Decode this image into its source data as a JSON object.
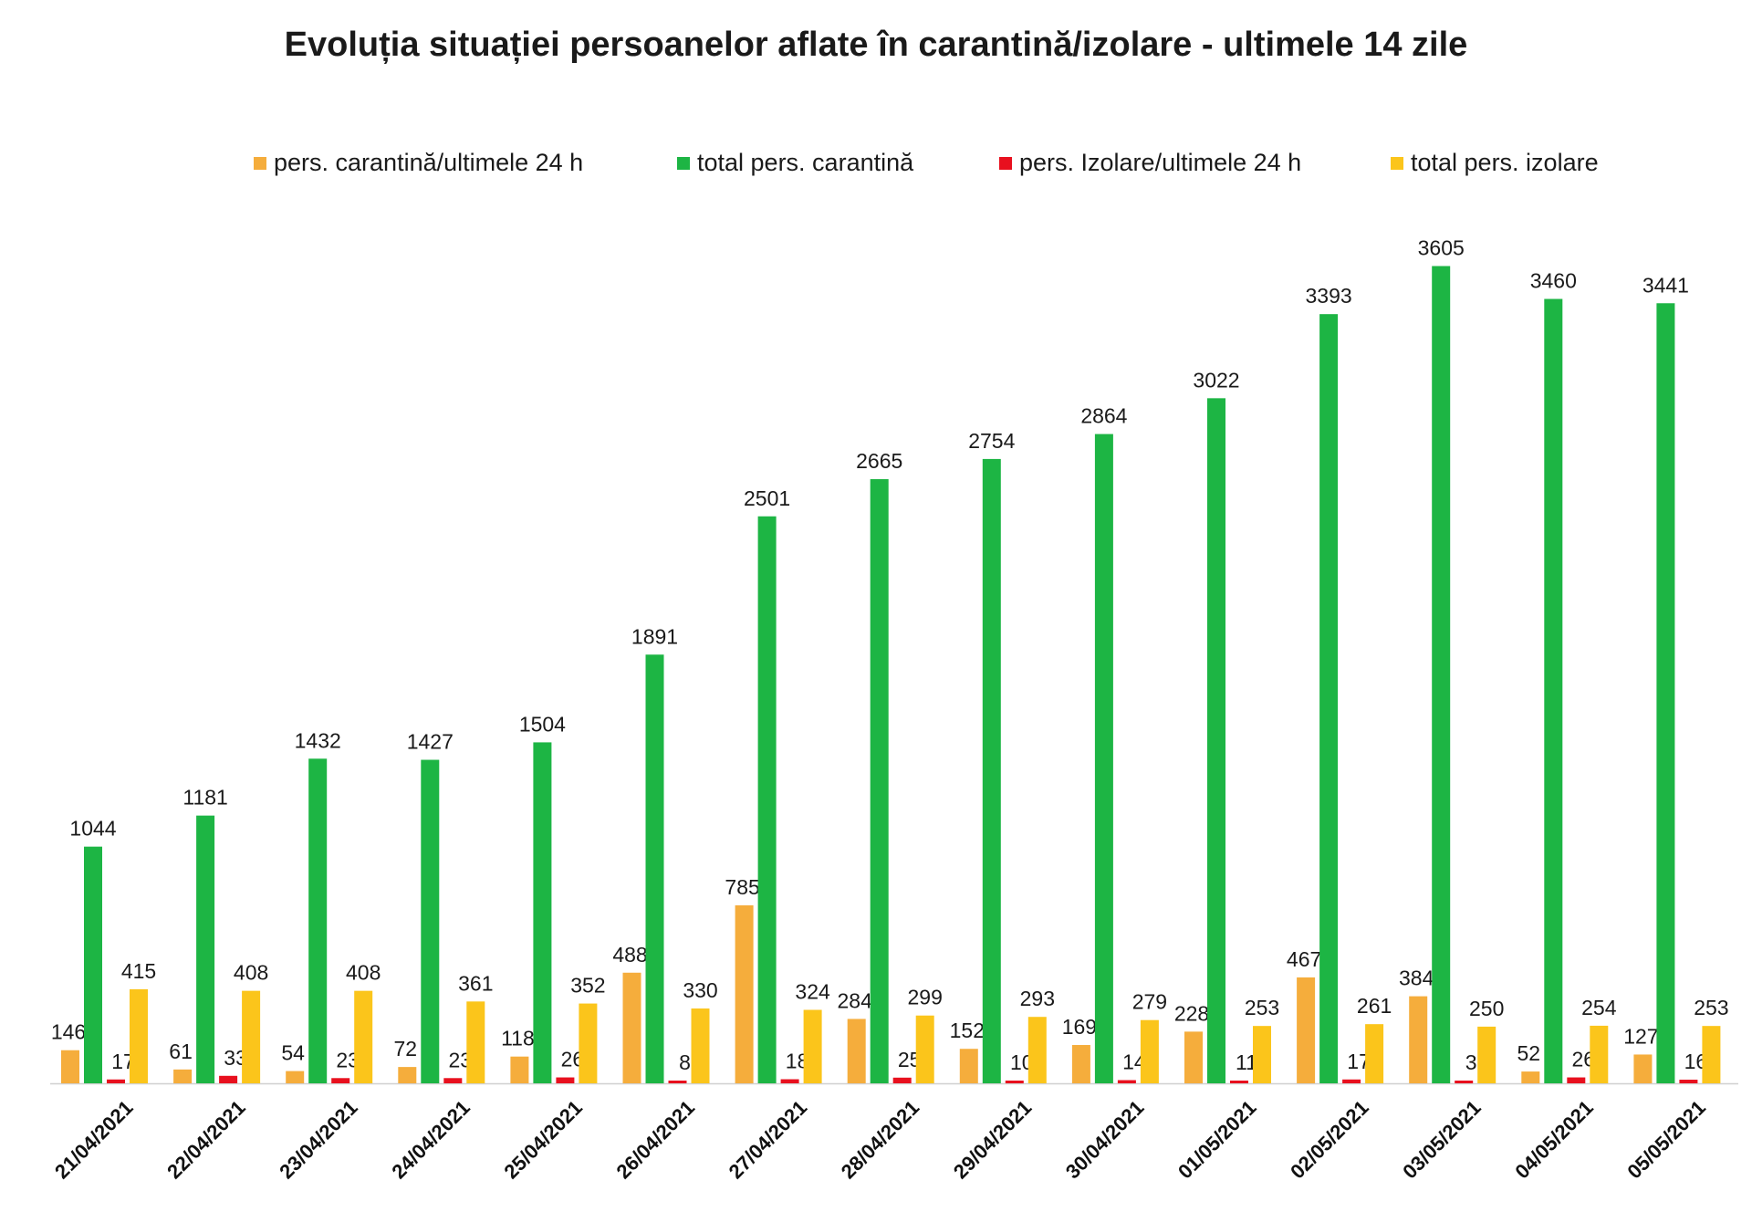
{
  "chart_data": {
    "type": "bar",
    "title": "Evoluția situației persoanelor aflate în carantină/izolare - ultimele 14 zile",
    "legend_position": "top",
    "grid": false,
    "ylim": [
      0,
      3700
    ],
    "categories": [
      "21/04/2021",
      "22/04/2021",
      "23/04/2021",
      "24/04/2021",
      "25/04/2021",
      "26/04/2021",
      "27/04/2021",
      "28/04/2021",
      "29/04/2021",
      "30/04/2021",
      "01/05/2021",
      "02/05/2021",
      "03/05/2021",
      "04/05/2021",
      "05/05/2021"
    ],
    "series": [
      {
        "name": "pers. carantină/ultimele 24 h",
        "color": "#f5ad3c",
        "values": [
          146,
          61,
          54,
          72,
          118,
          488,
          785,
          284,
          152,
          169,
          228,
          467,
          384,
          52,
          127
        ]
      },
      {
        "name": "total pers. carantină",
        "color": "#1db544",
        "values": [
          1044,
          1181,
          1432,
          1427,
          1504,
          1891,
          2501,
          2665,
          2754,
          2864,
          3022,
          3393,
          3605,
          3460,
          3441
        ]
      },
      {
        "name": "pers. Izolare/ultimele 24 h",
        "color": "#e8101e",
        "values": [
          17,
          33,
          23,
          23,
          26,
          8,
          18,
          25,
          10,
          14,
          11,
          17,
          3,
          26,
          16
        ]
      },
      {
        "name": "total pers. izolare",
        "color": "#fbc51b",
        "values": [
          415,
          408,
          408,
          361,
          352,
          330,
          324,
          299,
          293,
          279,
          253,
          261,
          250,
          254,
          253
        ]
      }
    ]
  }
}
